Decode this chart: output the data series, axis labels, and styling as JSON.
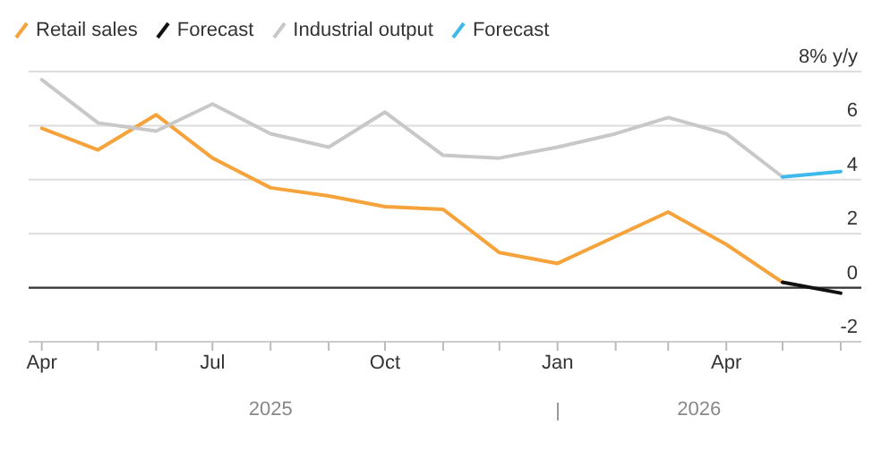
{
  "chart_data": {
    "type": "line",
    "x": [
      "2025-04",
      "2025-05",
      "2025-06",
      "2025-07",
      "2025-08",
      "2025-09",
      "2025-10",
      "2025-11",
      "2025-12",
      "2026-01",
      "2026-02",
      "2026-03",
      "2026-04",
      "2026-05"
    ],
    "series": [
      {
        "name": "Retail sales",
        "color": "#f5a33a",
        "values": [
          5.9,
          5.1,
          6.4,
          4.8,
          3.7,
          3.4,
          3.0,
          2.9,
          1.3,
          0.9,
          1.9,
          2.8,
          1.6,
          0.2
        ]
      },
      {
        "name": "Forecast",
        "color": "#111111",
        "x": [
          "2026-05",
          "2026-06"
        ],
        "values": [
          0.2,
          -0.2
        ]
      },
      {
        "name": "Industrial output",
        "color": "#c8c8c8",
        "values": [
          7.7,
          6.1,
          5.8,
          6.8,
          5.7,
          5.2,
          6.5,
          4.9,
          4.8,
          5.2,
          5.7,
          6.3,
          5.7,
          4.1
        ]
      },
      {
        "name": "Forecast",
        "color": "#3fb8ec",
        "x": [
          "2026-05",
          "2026-06"
        ],
        "values": [
          4.1,
          4.3
        ]
      }
    ],
    "xlim": [
      "2025-03-25",
      "2026-06-12"
    ],
    "xticks": [
      {
        "value": "2025-04",
        "label": "Apr"
      },
      {
        "value": "2025-05",
        "label": null
      },
      {
        "value": "2025-06",
        "label": null
      },
      {
        "value": "2025-07",
        "label": "Jul"
      },
      {
        "value": "2025-08",
        "label": null
      },
      {
        "value": "2025-09",
        "label": null
      },
      {
        "value": "2025-10",
        "label": "Oct"
      },
      {
        "value": "2025-11",
        "label": null
      },
      {
        "value": "2025-12",
        "label": null
      },
      {
        "value": "2026-01",
        "label": "Jan"
      },
      {
        "value": "2026-02",
        "label": null
      },
      {
        "value": "2026-03",
        "label": null
      },
      {
        "value": "2026-04",
        "label": "Apr"
      },
      {
        "value": "2026-05",
        "label": null
      },
      {
        "value": "2026-06",
        "label": null
      }
    ],
    "ylim": [
      -2,
      8
    ],
    "yticks": [
      {
        "value": 8,
        "label": "8% y/y"
      },
      6,
      4,
      2,
      0,
      -2
    ],
    "ref_lines": [
      {
        "axis": "y",
        "value": 0,
        "color": "#333333"
      }
    ],
    "annotations": [
      "2025",
      "2026"
    ],
    "grid": "y",
    "legend": "top left",
    "marker": "none",
    "line_style": "solid"
  }
}
